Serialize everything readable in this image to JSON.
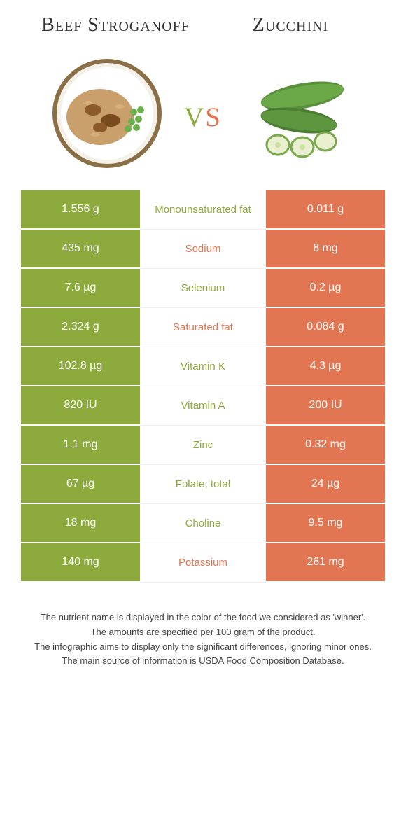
{
  "header": {
    "left_title": "Beef Stroganoff",
    "right_title": "Zucchini",
    "vs_v": "v",
    "vs_s": "s"
  },
  "colors": {
    "left_bg": "#8daa3c",
    "right_bg": "#e27652",
    "text_light": "#ffffff"
  },
  "rows": [
    {
      "left": "1.556 g",
      "label": "Monounsaturated fat",
      "right": "0.011 g",
      "winner": "left"
    },
    {
      "left": "435 mg",
      "label": "Sodium",
      "right": "8 mg",
      "winner": "right"
    },
    {
      "left": "7.6 µg",
      "label": "Selenium",
      "right": "0.2 µg",
      "winner": "left"
    },
    {
      "left": "2.324 g",
      "label": "Saturated fat",
      "right": "0.084 g",
      "winner": "right"
    },
    {
      "left": "102.8 µg",
      "label": "Vitamin K",
      "right": "4.3 µg",
      "winner": "left"
    },
    {
      "left": "820 IU",
      "label": "Vitamin A",
      "right": "200 IU",
      "winner": "left"
    },
    {
      "left": "1.1 mg",
      "label": "Zinc",
      "right": "0.32 mg",
      "winner": "left"
    },
    {
      "left": "67 µg",
      "label": "Folate, total",
      "right": "24 µg",
      "winner": "left"
    },
    {
      "left": "18 mg",
      "label": "Choline",
      "right": "9.5 mg",
      "winner": "left"
    },
    {
      "left": "140 mg",
      "label": "Potassium",
      "right": "261 mg",
      "winner": "right"
    }
  ],
  "footer": {
    "line1": "The nutrient name is displayed in the color of the food we considered as 'winner'.",
    "line2": "The amounts are specified per 100 gram of the product.",
    "line3": "The infographic aims to display only the significant differences, ignoring minor ones.",
    "line4": "The main source of information is USDA Food Composition Database."
  }
}
